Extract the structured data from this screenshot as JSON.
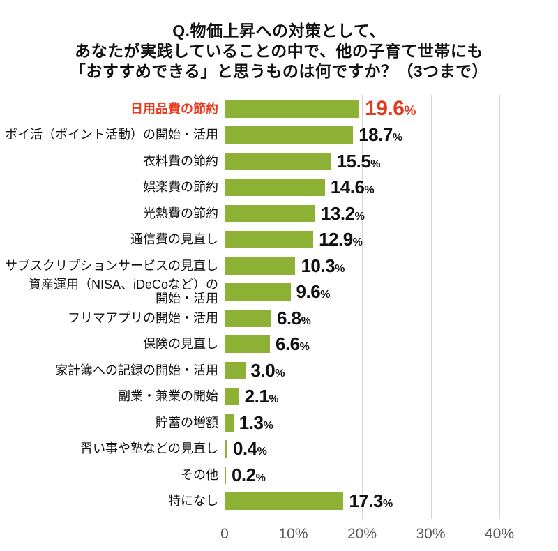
{
  "title": {
    "line1": "Q.物価上昇への対策として、",
    "line2": "あなたが実践していることの中で、他の子育て世帯にも",
    "line3": "「おすすめできる」と思うものは何ですか？（3つまで）"
  },
  "colors": {
    "bar": "#8cb134",
    "highlight": "#e8391c",
    "label_text": "#111111",
    "axis_text": "#595959",
    "gridline": "#d6d6d6",
    "axis_line": "#bdbdbd"
  },
  "percent_sign": "%",
  "chart_data": {
    "type": "bar",
    "orientation": "horizontal",
    "title": "Q.物価上昇への対策として、あなたが実践していることの中で、他の子育て世帯にも「おすすめできる」と思うものは何ですか？（3つまで）",
    "unit": "%",
    "xlim": [
      0,
      45
    ],
    "grid": "vertical",
    "x_tick_labels": [
      "0",
      "10%",
      "20%",
      "30%",
      "40%"
    ],
    "x_tick_values": [
      0,
      10,
      20,
      30,
      40
    ],
    "highlight_index": 0,
    "categories": [
      "日用品費の節約",
      "ポイ活（ポイント活動）の開始・活用",
      "衣料費の節約",
      "娯楽費の節約",
      "光熱費の節約",
      "通信費の見直し",
      "サブスクリプションサービスの見直し",
      "資産運用（NISA、iDeCoなど）の開始・活用",
      "フリマアプリの開始・活用",
      "保険の見直し",
      "家計簿への記録の開始・活用",
      "副業・兼業の開始",
      "貯蓄の増額",
      "習い事や塾などの見直し",
      "その他",
      "特になし"
    ],
    "values": [
      19.6,
      18.7,
      15.5,
      14.6,
      13.2,
      12.9,
      10.3,
      9.6,
      6.8,
      6.6,
      3.0,
      2.1,
      1.3,
      0.4,
      0.2,
      17.3
    ],
    "bars": [
      {
        "label_lines": [
          "日用品費の節約"
        ],
        "value": 19.6,
        "display": "19.6",
        "highlight": true
      },
      {
        "label_lines": [
          "ポイ活（ポイント活動）の開始・活用"
        ],
        "value": 18.7,
        "display": "18.7",
        "highlight": false
      },
      {
        "label_lines": [
          "衣料費の節約"
        ],
        "value": 15.5,
        "display": "15.5",
        "highlight": false
      },
      {
        "label_lines": [
          "娯楽費の節約"
        ],
        "value": 14.6,
        "display": "14.6",
        "highlight": false
      },
      {
        "label_lines": [
          "光熱費の節約"
        ],
        "value": 13.2,
        "display": "13.2",
        "highlight": false
      },
      {
        "label_lines": [
          "通信費の見直し"
        ],
        "value": 12.9,
        "display": "12.9",
        "highlight": false
      },
      {
        "label_lines": [
          "サブスクリプションサービスの見直し"
        ],
        "value": 10.3,
        "display": "10.3",
        "highlight": false
      },
      {
        "label_lines": [
          "資産運用（NISA、iDeCoなど）の",
          "開始・活用"
        ],
        "value": 9.6,
        "display": "9.6",
        "highlight": false
      },
      {
        "label_lines": [
          "フリマアプリの開始・活用"
        ],
        "value": 6.8,
        "display": "6.8",
        "highlight": false
      },
      {
        "label_lines": [
          "保険の見直し"
        ],
        "value": 6.6,
        "display": "6.6",
        "highlight": false
      },
      {
        "label_lines": [
          "家計簿への記録の開始・活用"
        ],
        "value": 3.0,
        "display": "3.0",
        "highlight": false
      },
      {
        "label_lines": [
          "副業・兼業の開始"
        ],
        "value": 2.1,
        "display": "2.1",
        "highlight": false
      },
      {
        "label_lines": [
          "貯蓄の増額"
        ],
        "value": 1.3,
        "display": "1.3",
        "highlight": false
      },
      {
        "label_lines": [
          "習い事や塾などの見直し"
        ],
        "value": 0.4,
        "display": "0.4",
        "highlight": false
      },
      {
        "label_lines": [
          "その他"
        ],
        "value": 0.2,
        "display": "0.2",
        "highlight": false
      },
      {
        "label_lines": [
          "特になし"
        ],
        "value": 17.3,
        "display": "17.3",
        "highlight": false
      }
    ]
  }
}
